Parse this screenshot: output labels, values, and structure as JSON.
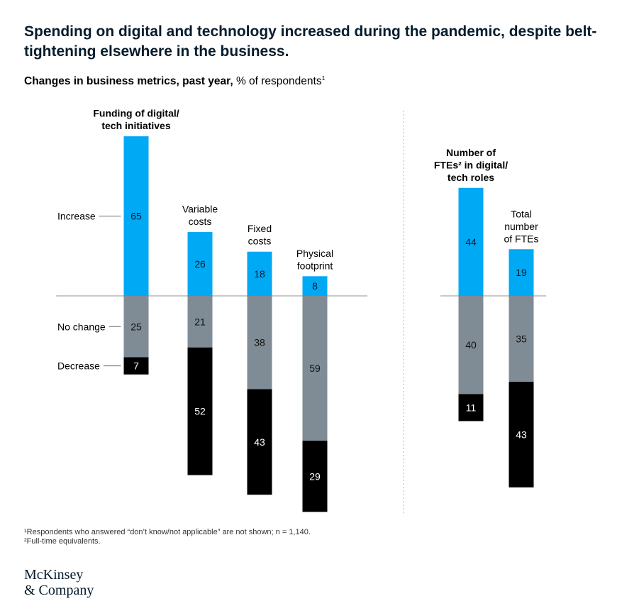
{
  "title": "Spending on digital and technology increased during the pandemic, despite belt-tightening elsewhere in the business.",
  "subtitle": {
    "bold": "Changes in business metrics, past year,",
    "regular": "% of respondents",
    "sup": "1"
  },
  "chart_data": {
    "type": "bar",
    "layout": "diverging-stacked",
    "colors": {
      "increase": "#00a9f4",
      "no_change": "#7f8c96",
      "decrease": "#000000"
    },
    "row_labels": [
      "Increase",
      "No change",
      "Decrease"
    ],
    "groups": [
      {
        "categories": [
          {
            "label_lines": [
              "Funding of digital/",
              "tech initiatives"
            ],
            "bold": true,
            "increase": 65,
            "no_change": 25,
            "decrease": 7
          },
          {
            "label_lines": [
              "Variable",
              "costs"
            ],
            "bold": false,
            "increase": 26,
            "no_change": 21,
            "decrease": 52
          },
          {
            "label_lines": [
              "Fixed",
              "costs"
            ],
            "bold": false,
            "increase": 18,
            "no_change": 38,
            "decrease": 43
          },
          {
            "label_lines": [
              "Physical",
              "footprint"
            ],
            "bold": false,
            "increase": 8,
            "no_change": 59,
            "decrease": 29
          }
        ]
      },
      {
        "categories": [
          {
            "label_lines": [
              "Number of",
              "FTEs² in digital/",
              "tech roles"
            ],
            "bold": true,
            "increase": 44,
            "no_change": 40,
            "decrease": 11
          },
          {
            "label_lines": [
              "Total",
              "number",
              "of FTEs"
            ],
            "bold": false,
            "increase": 19,
            "no_change": 35,
            "decrease": 43
          }
        ]
      }
    ]
  },
  "footnotes": [
    "¹Respondents who answered “don’t know/not applicable” are not shown; n = 1,140.",
    "²Full-time equivalents."
  ],
  "logo": [
    "McKinsey",
    "& Company"
  ]
}
